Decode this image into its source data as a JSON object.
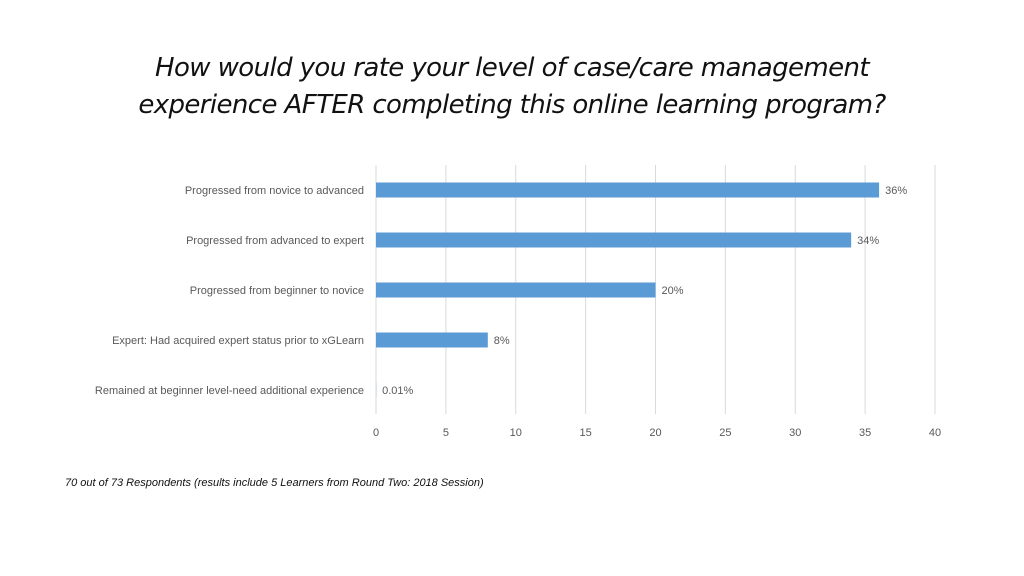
{
  "title_lines": [
    "How would you rate your level of case/care management",
    "experience AFTER completing this online learning program?"
  ],
  "footnote": "70 out of 73 Respondents (results include 5 Learners from Round Two: 2018 Session)",
  "colors": {
    "bar": "#5b9bd5",
    "grid": "#d9d9d9",
    "text": "#595959"
  },
  "chart_data": {
    "type": "bar",
    "orientation": "horizontal",
    "categories": [
      "Progressed from novice to advanced",
      "Progressed from advanced to expert",
      "Progressed from beginner to novice",
      "Expert: Had acquired expert status prior to xGLearn",
      "Remained at beginner level-need additional experience"
    ],
    "values": [
      36,
      34,
      20,
      8,
      0.01
    ],
    "data_labels": [
      "36%",
      "34%",
      "20%",
      "8%",
      "0.01%"
    ],
    "xlim": [
      0,
      40
    ],
    "xticks": [
      0,
      5,
      10,
      15,
      20,
      25,
      30,
      35,
      40
    ],
    "grid": true,
    "legend": "none"
  }
}
